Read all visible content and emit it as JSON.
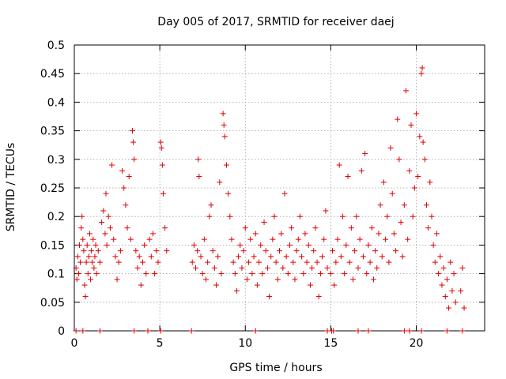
{
  "chart_data": {
    "type": "scatter",
    "title": "Day 005 of 2017, SRMTID for receiver daej",
    "xlabel": "GPS time / hours",
    "ylabel": "SRMTID / TECUs",
    "xlim": [
      0,
      24
    ],
    "ylim": [
      0,
      0.5
    ],
    "x_ticks": [
      0,
      5,
      10,
      15,
      20
    ],
    "y_ticks": [
      0,
      0.05,
      0.1,
      0.15,
      0.2,
      0.25,
      0.3,
      0.35,
      0.4,
      0.45,
      0.5
    ],
    "grid": true,
    "legend": "none",
    "marker": "+",
    "color": "#e00000",
    "series": [
      {
        "points": [
          [
            0.1,
            0.11
          ],
          [
            0.15,
            0.09
          ],
          [
            0.2,
            0.13
          ],
          [
            0.25,
            0.1
          ],
          [
            0.3,
            0.15
          ],
          [
            0.35,
            0.12
          ],
          [
            0.4,
            0.18
          ],
          [
            0.45,
            0.2
          ],
          [
            0.5,
            0.16
          ],
          [
            0.55,
            0.14
          ],
          [
            0.6,
            0.08
          ],
          [
            0.65,
            0.06
          ],
          [
            0.7,
            0.12
          ],
          [
            0.75,
            0.15
          ],
          [
            0.8,
            0.1
          ],
          [
            0.85,
            0.13
          ],
          [
            0.9,
            0.17
          ],
          [
            0.95,
            0.09
          ],
          [
            1.0,
            0.14
          ],
          [
            1.05,
            0.12
          ],
          [
            1.1,
            0.16
          ],
          [
            1.15,
            0.11
          ],
          [
            1.2,
            0.13
          ],
          [
            1.25,
            0.15
          ],
          [
            1.3,
            0.1
          ],
          [
            1.4,
            0.14
          ],
          [
            1.5,
            0.12
          ],
          [
            1.6,
            0.19
          ],
          [
            1.7,
            0.21
          ],
          [
            1.8,
            0.17
          ],
          [
            1.85,
            0.24
          ],
          [
            1.9,
            0.15
          ],
          [
            2.0,
            0.2
          ],
          [
            2.1,
            0.18
          ],
          [
            2.2,
            0.29
          ],
          [
            2.3,
            0.16
          ],
          [
            2.4,
            0.13
          ],
          [
            2.5,
            0.09
          ],
          [
            2.6,
            0.12
          ],
          [
            2.7,
            0.14
          ],
          [
            2.8,
            0.28
          ],
          [
            2.9,
            0.25
          ],
          [
            3.0,
            0.22
          ],
          [
            3.1,
            0.18
          ],
          [
            3.2,
            0.27
          ],
          [
            3.3,
            0.16
          ],
          [
            3.4,
            0.35
          ],
          [
            3.45,
            0.33
          ],
          [
            3.5,
            0.3
          ],
          [
            3.6,
            0.14
          ],
          [
            3.7,
            0.11
          ],
          [
            3.8,
            0.13
          ],
          [
            3.9,
            0.08
          ],
          [
            4.0,
            0.12
          ],
          [
            4.1,
            0.15
          ],
          [
            4.2,
            0.1
          ],
          [
            4.4,
            0.16
          ],
          [
            4.5,
            0.13
          ],
          [
            4.6,
            0.17
          ],
          [
            4.7,
            0.1
          ],
          [
            4.8,
            0.14
          ],
          [
            4.9,
            0.12
          ],
          [
            5.05,
            0.33
          ],
          [
            5.1,
            0.32
          ],
          [
            5.15,
            0.29
          ],
          [
            5.2,
            0.24
          ],
          [
            5.3,
            0.18
          ],
          [
            5.4,
            0.14
          ],
          [
            6.9,
            0.12
          ],
          [
            7.0,
            0.15
          ],
          [
            7.1,
            0.11
          ],
          [
            7.2,
            0.14
          ],
          [
            7.25,
            0.3
          ],
          [
            7.3,
            0.27
          ],
          [
            7.4,
            0.13
          ],
          [
            7.5,
            0.1
          ],
          [
            7.6,
            0.16
          ],
          [
            7.7,
            0.09
          ],
          [
            7.8,
            0.12
          ],
          [
            7.9,
            0.2
          ],
          [
            8.0,
            0.22
          ],
          [
            8.1,
            0.14
          ],
          [
            8.2,
            0.11
          ],
          [
            8.3,
            0.08
          ],
          [
            8.4,
            0.13
          ],
          [
            8.5,
            0.26
          ],
          [
            8.6,
            0.1
          ],
          [
            8.7,
            0.38
          ],
          [
            8.75,
            0.36
          ],
          [
            8.8,
            0.34
          ],
          [
            8.9,
            0.29
          ],
          [
            9.0,
            0.24
          ],
          [
            9.1,
            0.2
          ],
          [
            9.2,
            0.16
          ],
          [
            9.3,
            0.12
          ],
          [
            9.4,
            0.1
          ],
          [
            9.5,
            0.07
          ],
          [
            9.6,
            0.13
          ],
          [
            9.7,
            0.15
          ],
          [
            9.8,
            0.11
          ],
          [
            9.9,
            0.14
          ],
          [
            10.0,
            0.18
          ],
          [
            10.1,
            0.09
          ],
          [
            10.2,
            0.12
          ],
          [
            10.3,
            0.16
          ],
          [
            10.4,
            0.1
          ],
          [
            10.5,
            0.13
          ],
          [
            10.6,
            0.17
          ],
          [
            10.7,
            0.08
          ],
          [
            10.8,
            0.12
          ],
          [
            10.9,
            0.15
          ],
          [
            11.0,
            0.1
          ],
          [
            11.1,
            0.19
          ],
          [
            11.2,
            0.14
          ],
          [
            11.3,
            0.11
          ],
          [
            11.4,
            0.06
          ],
          [
            11.5,
            0.13
          ],
          [
            11.6,
            0.16
          ],
          [
            11.7,
            0.2
          ],
          [
            11.8,
            0.12
          ],
          [
            11.9,
            0.09
          ],
          [
            12.0,
            0.14
          ],
          [
            12.1,
            0.17
          ],
          [
            12.2,
            0.11
          ],
          [
            12.3,
            0.24
          ],
          [
            12.4,
            0.13
          ],
          [
            12.5,
            0.1
          ],
          [
            12.6,
            0.15
          ],
          [
            12.7,
            0.18
          ],
          [
            12.8,
            0.12
          ],
          [
            12.9,
            0.09
          ],
          [
            13.0,
            0.14
          ],
          [
            13.1,
            0.16
          ],
          [
            13.2,
            0.2
          ],
          [
            13.3,
            0.13
          ],
          [
            13.4,
            0.1
          ],
          [
            13.5,
            0.17
          ],
          [
            13.6,
            0.12
          ],
          [
            13.7,
            0.15
          ],
          [
            13.8,
            0.08
          ],
          [
            13.9,
            0.11
          ],
          [
            14.0,
            0.14
          ],
          [
            14.1,
            0.18
          ],
          [
            14.2,
            0.12
          ],
          [
            14.3,
            0.06
          ],
          [
            14.4,
            0.1
          ],
          [
            14.5,
            0.13
          ],
          [
            14.6,
            0.16
          ],
          [
            14.7,
            0.21
          ],
          [
            14.8,
            0.11
          ],
          [
            15.0,
            0.1
          ],
          [
            15.1,
            0.14
          ],
          [
            15.2,
            0.08
          ],
          [
            15.3,
            0.12
          ],
          [
            15.4,
            0.16
          ],
          [
            15.5,
            0.29
          ],
          [
            15.6,
            0.13
          ],
          [
            15.7,
            0.2
          ],
          [
            15.8,
            0.1
          ],
          [
            15.9,
            0.15
          ],
          [
            16.0,
            0.27
          ],
          [
            16.1,
            0.12
          ],
          [
            16.2,
            0.18
          ],
          [
            16.3,
            0.09
          ],
          [
            16.4,
            0.14
          ],
          [
            16.5,
            0.2
          ],
          [
            16.6,
            0.11
          ],
          [
            16.7,
            0.16
          ],
          [
            16.8,
            0.28
          ],
          [
            16.9,
            0.13
          ],
          [
            17.0,
            0.31
          ],
          [
            17.1,
            0.1
          ],
          [
            17.2,
            0.15
          ],
          [
            17.3,
            0.12
          ],
          [
            17.4,
            0.18
          ],
          [
            17.5,
            0.09
          ],
          [
            17.6,
            0.14
          ],
          [
            17.7,
            0.11
          ],
          [
            17.8,
            0.17
          ],
          [
            17.9,
            0.22
          ],
          [
            18.0,
            0.13
          ],
          [
            18.1,
            0.26
          ],
          [
            18.2,
            0.16
          ],
          [
            18.3,
            0.2
          ],
          [
            18.4,
            0.12
          ],
          [
            18.5,
            0.32
          ],
          [
            18.6,
            0.24
          ],
          [
            18.7,
            0.17
          ],
          [
            18.8,
            0.14
          ],
          [
            18.9,
            0.37
          ],
          [
            19.0,
            0.3
          ],
          [
            19.1,
            0.19
          ],
          [
            19.2,
            0.13
          ],
          [
            19.3,
            0.22
          ],
          [
            19.4,
            0.42
          ],
          [
            19.5,
            0.16
          ],
          [
            19.6,
            0.28
          ],
          [
            19.7,
            0.36
          ],
          [
            19.8,
            0.2
          ],
          [
            19.9,
            0.25
          ],
          [
            20.0,
            0.38
          ],
          [
            20.1,
            0.27
          ],
          [
            20.2,
            0.34
          ],
          [
            20.3,
            0.45
          ],
          [
            20.35,
            0.46
          ],
          [
            20.4,
            0.33
          ],
          [
            20.5,
            0.3
          ],
          [
            20.6,
            0.22
          ],
          [
            20.7,
            0.18
          ],
          [
            20.8,
            0.26
          ],
          [
            20.9,
            0.2
          ],
          [
            21.0,
            0.15
          ],
          [
            21.1,
            0.12
          ],
          [
            21.2,
            0.17
          ],
          [
            21.3,
            0.1
          ],
          [
            21.4,
            0.13
          ],
          [
            21.5,
            0.08
          ],
          [
            21.6,
            0.11
          ],
          [
            21.7,
            0.06
          ],
          [
            21.8,
            0.09
          ],
          [
            21.9,
            0.04
          ],
          [
            22.0,
            0.12
          ],
          [
            22.1,
            0.07
          ],
          [
            22.2,
            0.1
          ],
          [
            22.3,
            0.05
          ],
          [
            22.6,
            0.07
          ],
          [
            22.7,
            0.11
          ],
          [
            22.8,
            0.04
          ],
          [
            0.1,
            0.0
          ],
          [
            0.5,
            0.0
          ],
          [
            1.5,
            0.0
          ],
          [
            3.5,
            0.0
          ],
          [
            4.3,
            0.0
          ],
          [
            5.05,
            0.0
          ],
          [
            6.85,
            0.0
          ],
          [
            10.6,
            0.0
          ],
          [
            14.8,
            0.0
          ],
          [
            15.05,
            0.0
          ],
          [
            15.15,
            0.0
          ],
          [
            16.6,
            0.0
          ],
          [
            17.2,
            0.0
          ],
          [
            19.3,
            0.0
          ],
          [
            19.6,
            0.0
          ],
          [
            20.3,
            0.0
          ],
          [
            21.8,
            0.0
          ],
          [
            22.7,
            0.0
          ]
        ]
      }
    ]
  }
}
